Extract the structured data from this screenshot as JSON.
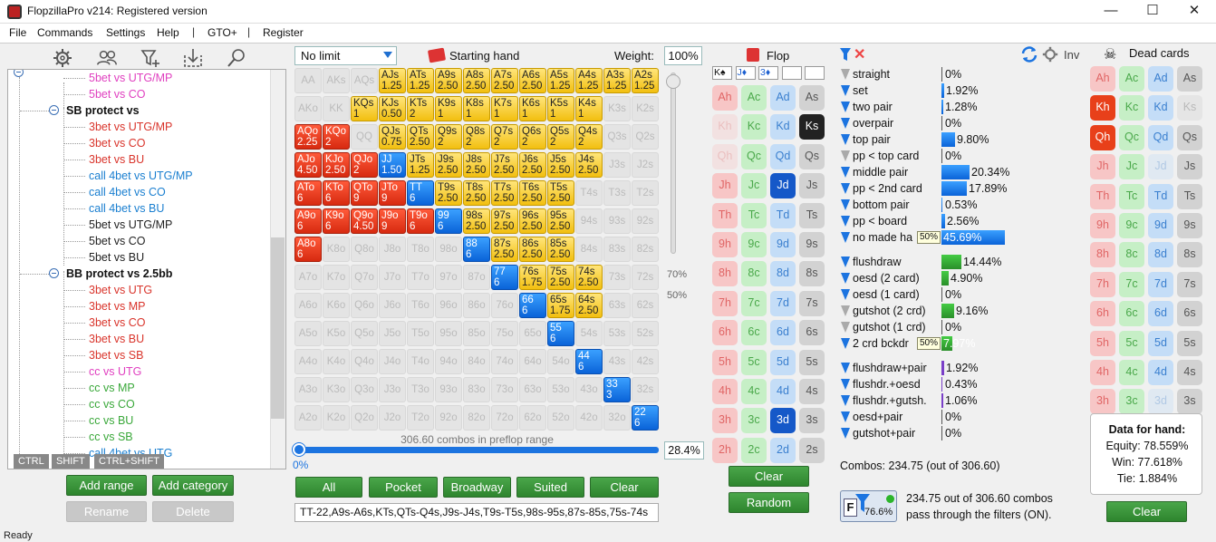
{
  "window": {
    "title": "FlopzillaPro v214: Registered version",
    "minimize": "—",
    "maximize": "☐",
    "close": "✕"
  },
  "menu": {
    "file": "File",
    "commands": "Commands",
    "settings": "Settings",
    "help": "Help",
    "sep1": "|",
    "gto": "GTO+",
    "sep2": "|",
    "register": "Register"
  },
  "left_toolbar": {
    "icons": [
      "gear-icon",
      "users-icon",
      "filter-add-icon",
      "import-icon",
      "search-icon"
    ]
  },
  "tree": {
    "nodes": [
      {
        "label": "5bet vs UTG/MP",
        "color": "#e040c0",
        "kind": "leaf"
      },
      {
        "label": "5bet vs CO",
        "color": "#e040c0",
        "kind": "leaf"
      },
      {
        "label": "SB protect vs",
        "color": "#111111",
        "kind": "cat"
      },
      {
        "label": "3bet vs UTG/MP",
        "color": "#d9342b",
        "kind": "leaf"
      },
      {
        "label": "3bet vs CO",
        "color": "#d9342b",
        "kind": "leaf"
      },
      {
        "label": "3bet vs BU",
        "color": "#d9342b",
        "kind": "leaf"
      },
      {
        "label": "call 4bet vs UTG/MP",
        "color": "#1a7fd0",
        "kind": "leaf"
      },
      {
        "label": "call 4bet vs CO",
        "color": "#1a7fd0",
        "kind": "leaf"
      },
      {
        "label": "call 4bet vs BU",
        "color": "#1a7fd0",
        "kind": "leaf"
      },
      {
        "label": "5bet vs UTG/MP",
        "color": "#222222",
        "kind": "leaf"
      },
      {
        "label": "5bet vs CO",
        "color": "#222222",
        "kind": "leaf"
      },
      {
        "label": "5bet vs BU",
        "color": "#222222",
        "kind": "leaf"
      },
      {
        "label": "BB protect vs 2.5bb",
        "color": "#111111",
        "kind": "cat"
      },
      {
        "label": "3bet vs UTG",
        "color": "#d9342b",
        "kind": "leaf"
      },
      {
        "label": "3bet vs MP",
        "color": "#d9342b",
        "kind": "leaf"
      },
      {
        "label": "3bet vs CO",
        "color": "#d9342b",
        "kind": "leaf"
      },
      {
        "label": "3bet vs BU",
        "color": "#d9342b",
        "kind": "leaf"
      },
      {
        "label": "3bet vs SB",
        "color": "#d9342b",
        "kind": "leaf"
      },
      {
        "label": "cc vs UTG",
        "color": "#e040c0",
        "kind": "leaf"
      },
      {
        "label": "cc vs MP",
        "color": "#3aa83a",
        "kind": "leaf"
      },
      {
        "label": "cc vs CO",
        "color": "#3aa83a",
        "kind": "leaf"
      },
      {
        "label": "cc vs BU",
        "color": "#3aa83a",
        "kind": "leaf"
      },
      {
        "label": "cc vs SB",
        "color": "#3aa83a",
        "kind": "leaf"
      },
      {
        "label": "call 4bet vs UTG",
        "color": "#1a7fd0",
        "kind": "leaf"
      }
    ]
  },
  "keys": {
    "ctrl": "CTRL",
    "shift": "SHIFT",
    "ctrlshift": "CTRL+SHIFT"
  },
  "left_buttons": {
    "add_range": "Add range",
    "add_category": "Add category",
    "rename": "Rename",
    "delete": "Delete"
  },
  "grid_header": {
    "limit": "No limit",
    "starting_hand": "Starting hand",
    "weight_label": "Weight:",
    "weight": "100%"
  },
  "hand_grid": {
    "ranks": [
      "A",
      "K",
      "Q",
      "J",
      "T",
      "9",
      "8",
      "7",
      "6",
      "5",
      "4",
      "3",
      "2"
    ],
    "rows": [
      [
        "e",
        "e",
        "e",
        "y",
        "y",
        "y",
        "y",
        "y",
        "y",
        "y",
        "y",
        "y",
        "y"
      ],
      [
        "e",
        "e",
        "y",
        "y",
        "y",
        "y",
        "y",
        "y",
        "y",
        "y",
        "y",
        "e",
        "e"
      ],
      [
        "r",
        "r",
        "e",
        "y",
        "y",
        "y",
        "y",
        "y",
        "y",
        "y",
        "y",
        "e",
        "e"
      ],
      [
        "r",
        "r",
        "r",
        "b",
        "y",
        "y",
        "y",
        "y",
        "y",
        "y",
        "y",
        "e",
        "e"
      ],
      [
        "r",
        "r",
        "r",
        "r",
        "b",
        "y",
        "y",
        "y",
        "y",
        "y",
        "e",
        "e",
        "e"
      ],
      [
        "r",
        "r",
        "r",
        "r",
        "r",
        "b",
        "y",
        "y",
        "y",
        "y",
        "e",
        "e",
        "e"
      ],
      [
        "r",
        "e",
        "e",
        "e",
        "e",
        "e",
        "b",
        "y",
        "y",
        "y",
        "e",
        "e",
        "e"
      ],
      [
        "e",
        "e",
        "e",
        "e",
        "e",
        "e",
        "e",
        "b",
        "y",
        "y",
        "y",
        "e",
        "e"
      ],
      [
        "e",
        "e",
        "e",
        "e",
        "e",
        "e",
        "e",
        "e",
        "b",
        "y",
        "y",
        "e",
        "e"
      ],
      [
        "e",
        "e",
        "e",
        "e",
        "e",
        "e",
        "e",
        "e",
        "e",
        "b",
        "e",
        "e",
        "e"
      ],
      [
        "e",
        "e",
        "e",
        "e",
        "e",
        "e",
        "e",
        "e",
        "e",
        "e",
        "b",
        "e",
        "e"
      ],
      [
        "e",
        "e",
        "e",
        "e",
        "e",
        "e",
        "e",
        "e",
        "e",
        "e",
        "e",
        "b",
        "e"
      ],
      [
        "e",
        "e",
        "e",
        "e",
        "e",
        "e",
        "e",
        "e",
        "e",
        "e",
        "e",
        "e",
        "b"
      ]
    ],
    "values": [
      [
        "",
        "",
        "",
        "1.25",
        "1.25",
        "2.50",
        "2.50",
        "2.50",
        "2.50",
        "1.25",
        "1.25",
        "1.25",
        "1.25"
      ],
      [
        "",
        "",
        "1",
        "0.50",
        "2",
        "1",
        "1",
        "1",
        "1",
        "1",
        "1",
        "",
        ""
      ],
      [
        "2.25",
        "2",
        "",
        "0.75",
        "2.50",
        "2",
        "2",
        "2",
        "2",
        "2",
        "2",
        "",
        ""
      ],
      [
        "4.50",
        "2.50",
        "2",
        "1.50",
        "1.25",
        "2.50",
        "2.50",
        "2.50",
        "2.50",
        "2.50",
        "2.50",
        "",
        ""
      ],
      [
        "6",
        "6",
        "9",
        "9",
        "6",
        "2.50",
        "2.50",
        "2.50",
        "2.50",
        "2.50",
        "",
        "",
        ""
      ],
      [
        "6",
        "6",
        "4.50",
        "9",
        "6",
        "6",
        "2.50",
        "2.50",
        "2.50",
        "2.50",
        "",
        "",
        ""
      ],
      [
        "6",
        "",
        "",
        "",
        "",
        "",
        "6",
        "2.50",
        "2.50",
        "2.50",
        "",
        "",
        ""
      ],
      [
        "",
        "",
        "",
        "",
        "",
        "",
        "",
        "6",
        "1.75",
        "2.50",
        "2.50",
        "",
        ""
      ],
      [
        "",
        "",
        "",
        "",
        "",
        "",
        "",
        "",
        "6",
        "1.75",
        "2.50",
        "",
        ""
      ],
      [
        "",
        "",
        "",
        "",
        "",
        "",
        "",
        "",
        "",
        "6",
        "",
        "",
        ""
      ],
      [
        "",
        "",
        "",
        "",
        "",
        "",
        "",
        "",
        "",
        "",
        "6",
        "",
        ""
      ],
      [
        "",
        "",
        "",
        "",
        "",
        "",
        "",
        "",
        "",
        "",
        "",
        "3",
        ""
      ],
      [
        "",
        "",
        "",
        "",
        "",
        "",
        "",
        "",
        "",
        "",
        "",
        "",
        "6"
      ]
    ]
  },
  "slider": {
    "p70": "70%",
    "p50": "50%"
  },
  "combos_label": "306.60 combos in preflop range",
  "progress": {
    "zero": "0%",
    "pct": "28.4%"
  },
  "range_buttons": {
    "all": "All",
    "pocket": "Pocket",
    "broadway": "Broadway",
    "suited": "Suited",
    "clear": "Clear"
  },
  "range_text": "TT-22,A9s-A6s,KTs,QTs-Q4s,J9s-J4s,T9s-T5s,98s-95s,87s-85s,75s-74s",
  "flop": {
    "title": "Flop",
    "slots": [
      "K♠",
      "J♦",
      "3♦",
      "",
      ""
    ],
    "rows": [
      [
        {
          "t": "Ah",
          "s": "h"
        },
        {
          "t": "Ac",
          "s": "c"
        },
        {
          "t": "Ad",
          "s": "d"
        },
        {
          "t": "As",
          "s": "s"
        }
      ],
      [
        {
          "t": "Kh",
          "s": "h",
          "f": 1
        },
        {
          "t": "Kc",
          "s": "c"
        },
        {
          "t": "Kd",
          "s": "d"
        },
        {
          "t": "Ks",
          "s": "s",
          "sel": 1
        }
      ],
      [
        {
          "t": "Qh",
          "s": "h",
          "f": 1
        },
        {
          "t": "Qc",
          "s": "c"
        },
        {
          "t": "Qd",
          "s": "d"
        },
        {
          "t": "Qs",
          "s": "s"
        }
      ],
      [
        {
          "t": "Jh",
          "s": "h"
        },
        {
          "t": "Jc",
          "s": "c"
        },
        {
          "t": "Jd",
          "s": "d",
          "sel": 1
        },
        {
          "t": "Js",
          "s": "s"
        }
      ],
      [
        {
          "t": "Th",
          "s": "h"
        },
        {
          "t": "Tc",
          "s": "c"
        },
        {
          "t": "Td",
          "s": "d"
        },
        {
          "t": "Ts",
          "s": "s"
        }
      ],
      [
        {
          "t": "9h",
          "s": "h"
        },
        {
          "t": "9c",
          "s": "c"
        },
        {
          "t": "9d",
          "s": "d"
        },
        {
          "t": "9s",
          "s": "s"
        }
      ],
      [
        {
          "t": "8h",
          "s": "h"
        },
        {
          "t": "8c",
          "s": "c"
        },
        {
          "t": "8d",
          "s": "d"
        },
        {
          "t": "8s",
          "s": "s"
        }
      ],
      [
        {
          "t": "7h",
          "s": "h"
        },
        {
          "t": "7c",
          "s": "c"
        },
        {
          "t": "7d",
          "s": "d"
        },
        {
          "t": "7s",
          "s": "s"
        }
      ],
      [
        {
          "t": "6h",
          "s": "h"
        },
        {
          "t": "6c",
          "s": "c"
        },
        {
          "t": "6d",
          "s": "d"
        },
        {
          "t": "6s",
          "s": "s"
        }
      ],
      [
        {
          "t": "5h",
          "s": "h"
        },
        {
          "t": "5c",
          "s": "c"
        },
        {
          "t": "5d",
          "s": "d"
        },
        {
          "t": "5s",
          "s": "s"
        }
      ],
      [
        {
          "t": "4h",
          "s": "h"
        },
        {
          "t": "4c",
          "s": "c"
        },
        {
          "t": "4d",
          "s": "d"
        },
        {
          "t": "4s",
          "s": "s"
        }
      ],
      [
        {
          "t": "3h",
          "s": "h"
        },
        {
          "t": "3c",
          "s": "c"
        },
        {
          "t": "3d",
          "s": "d",
          "sel": 1
        },
        {
          "t": "3s",
          "s": "s"
        }
      ],
      [
        {
          "t": "2h",
          "s": "h"
        },
        {
          "t": "2c",
          "s": "c"
        },
        {
          "t": "2d",
          "s": "d"
        },
        {
          "t": "2s",
          "s": "s"
        }
      ]
    ],
    "clear": "Clear",
    "random": "Random"
  },
  "filters": {
    "inv": "Inv",
    "made": [
      {
        "label": "straight",
        "pct": "0%",
        "frac": 0,
        "icon": "g"
      },
      {
        "label": "set",
        "pct": "1.92%",
        "frac": 0.0192,
        "icon": "b"
      },
      {
        "label": "two pair",
        "pct": "1.28%",
        "frac": 0.0128,
        "icon": "b"
      },
      {
        "label": "overpair",
        "pct": "0%",
        "frac": 0,
        "icon": "b"
      },
      {
        "label": "top pair",
        "pct": "9.80%",
        "frac": 0.098,
        "icon": "b"
      },
      {
        "label": "pp < top card",
        "pct": "0%",
        "frac": 0,
        "icon": "g"
      },
      {
        "label": "middle pair",
        "pct": "20.34%",
        "frac": 0.2034,
        "icon": "b"
      },
      {
        "label": "pp < 2nd card",
        "pct": "17.89%",
        "frac": 0.1789,
        "icon": "b"
      },
      {
        "label": "bottom pair",
        "pct": "0.53%",
        "frac": 0.0053,
        "icon": "b"
      },
      {
        "label": "pp < board",
        "pct": "2.56%",
        "frac": 0.0256,
        "icon": "b"
      },
      {
        "label": "no made ha",
        "pct": "45.69%",
        "frac": 0.4569,
        "icon": "b",
        "tag": "50%"
      }
    ],
    "draws": [
      {
        "label": "flushdraw",
        "pct": "14.44%",
        "frac": 0.1444,
        "icon": "b"
      },
      {
        "label": "oesd (2 card)",
        "pct": "4.90%",
        "frac": 0.049,
        "icon": "b"
      },
      {
        "label": "oesd (1 card)",
        "pct": "0%",
        "frac": 0,
        "icon": "b"
      },
      {
        "label": "gutshot (2 crd)",
        "pct": "9.16%",
        "frac": 0.0916,
        "icon": "g"
      },
      {
        "label": "gutshot (1 crd)",
        "pct": "0%",
        "frac": 0,
        "icon": "g"
      },
      {
        "label": "2 crd bckdr",
        "pct": "7.97%",
        "frac": 0.0797,
        "icon": "b",
        "tag": "50%"
      }
    ],
    "combo": [
      {
        "label": "flushdraw+pair",
        "pct": "1.92%",
        "frac": 0.0192,
        "icon": "b"
      },
      {
        "label": "flushdr.+oesd",
        "pct": "0.43%",
        "frac": 0.0043,
        "icon": "b"
      },
      {
        "label": "flushdr.+gutsh.",
        "pct": "1.06%",
        "frac": 0.0106,
        "icon": "b"
      },
      {
        "label": "oesd+pair",
        "pct": "0%",
        "frac": 0,
        "icon": "b"
      },
      {
        "label": "gutshot+pair",
        "pct": "0%",
        "frac": 0,
        "icon": "b"
      }
    ],
    "combos": "Combos: 234.75 (out of 306.60)",
    "summary_badge": "76.6%",
    "summary_line1": "234.75 out of 306.60 combos",
    "summary_line2": "pass through the filters (ON)."
  },
  "dead": {
    "title": "Dead cards",
    "rows": [
      [
        {
          "t": "Ah",
          "s": "h"
        },
        {
          "t": "Ac",
          "s": "c"
        },
        {
          "t": "Ad",
          "s": "d"
        },
        {
          "t": "As",
          "s": "s"
        }
      ],
      [
        {
          "t": "Kh",
          "s": "h",
          "sel": 1
        },
        {
          "t": "Kc",
          "s": "c"
        },
        {
          "t": "Kd",
          "s": "d"
        },
        {
          "t": "Ks",
          "s": "s",
          "f": 1
        }
      ],
      [
        {
          "t": "Qh",
          "s": "h",
          "sel": 1
        },
        {
          "t": "Qc",
          "s": "c"
        },
        {
          "t": "Qd",
          "s": "d"
        },
        {
          "t": "Qs",
          "s": "s"
        }
      ],
      [
        {
          "t": "Jh",
          "s": "h"
        },
        {
          "t": "Jc",
          "s": "c"
        },
        {
          "t": "Jd",
          "s": "d",
          "f": 1
        },
        {
          "t": "Js",
          "s": "s"
        }
      ],
      [
        {
          "t": "Th",
          "s": "h"
        },
        {
          "t": "Tc",
          "s": "c"
        },
        {
          "t": "Td",
          "s": "d"
        },
        {
          "t": "Ts",
          "s": "s"
        }
      ],
      [
        {
          "t": "9h",
          "s": "h"
        },
        {
          "t": "9c",
          "s": "c"
        },
        {
          "t": "9d",
          "s": "d"
        },
        {
          "t": "9s",
          "s": "s"
        }
      ],
      [
        {
          "t": "8h",
          "s": "h"
        },
        {
          "t": "8c",
          "s": "c"
        },
        {
          "t": "8d",
          "s": "d"
        },
        {
          "t": "8s",
          "s": "s"
        }
      ],
      [
        {
          "t": "7h",
          "s": "h"
        },
        {
          "t": "7c",
          "s": "c"
        },
        {
          "t": "7d",
          "s": "d"
        },
        {
          "t": "7s",
          "s": "s"
        }
      ],
      [
        {
          "t": "6h",
          "s": "h"
        },
        {
          "t": "6c",
          "s": "c"
        },
        {
          "t": "6d",
          "s": "d"
        },
        {
          "t": "6s",
          "s": "s"
        }
      ],
      [
        {
          "t": "5h",
          "s": "h"
        },
        {
          "t": "5c",
          "s": "c"
        },
        {
          "t": "5d",
          "s": "d"
        },
        {
          "t": "5s",
          "s": "s"
        }
      ],
      [
        {
          "t": "4h",
          "s": "h"
        },
        {
          "t": "4c",
          "s": "c"
        },
        {
          "t": "4d",
          "s": "d"
        },
        {
          "t": "4s",
          "s": "s"
        }
      ],
      [
        {
          "t": "3h",
          "s": "h"
        },
        {
          "t": "3c",
          "s": "c"
        },
        {
          "t": "3d",
          "s": "d",
          "f": 1
        },
        {
          "t": "3s",
          "s": "s"
        }
      ],
      [
        {
          "t": "2h",
          "s": "h"
        },
        {
          "t": "2c",
          "s": "c"
        },
        {
          "t": "2d",
          "s": "d"
        },
        {
          "t": "2s",
          "s": "s"
        }
      ]
    ],
    "hand_title": "Data for hand:",
    "equity": "Equity: 78.559%",
    "win": "Win: 77.618%",
    "tie": "Tie: 1.884%",
    "clear": "Clear"
  },
  "status": "Ready"
}
